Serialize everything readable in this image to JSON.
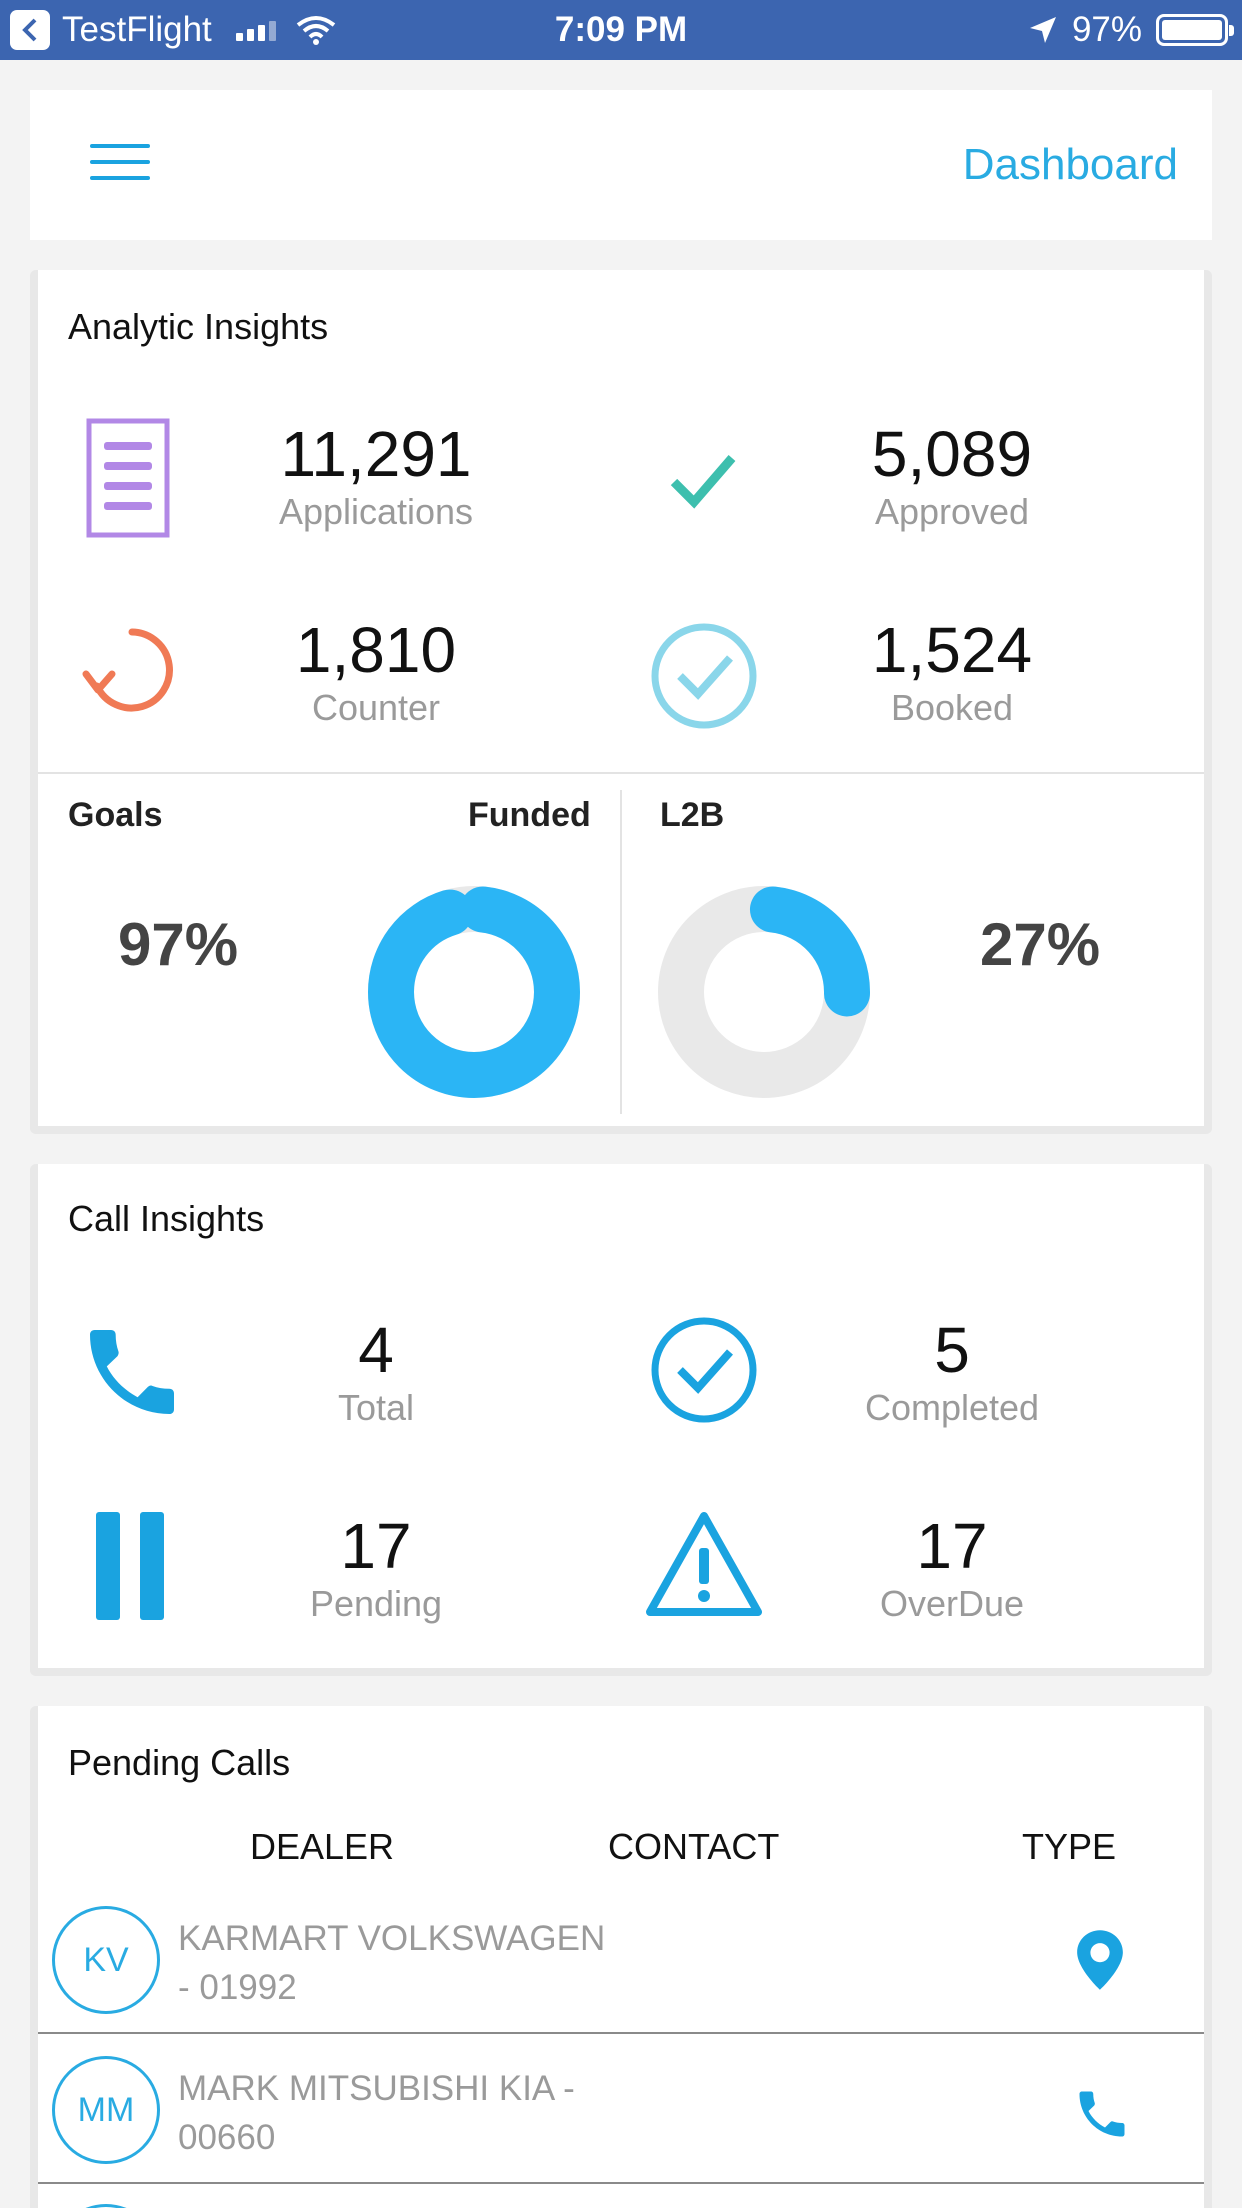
{
  "status_bar": {
    "back_app": "TestFlight",
    "time": "7:09 PM",
    "battery": "97%"
  },
  "header": {
    "title": "Dashboard"
  },
  "analytic": {
    "title": "Analytic Insights",
    "metrics": [
      {
        "value": "11,291",
        "label": "Applications",
        "icon": "document-icon",
        "color": "#b288e6"
      },
      {
        "value": "5,089",
        "label": "Approved",
        "icon": "check-icon",
        "color": "#3dbfae"
      },
      {
        "value": "1,810",
        "label": "Counter",
        "icon": "refresh-icon",
        "color": "#f07a55"
      },
      {
        "value": "1,524",
        "label": "Booked",
        "icon": "check-circle-icon",
        "color": "#8ad6ea"
      }
    ],
    "goals": {
      "goals_label": "Goals",
      "funded_label": "Funded",
      "funded_pct": "97%",
      "funded_value": 0.97,
      "l2b_label": "L2B",
      "l2b_pct": "27%",
      "l2b_value": 0.27
    }
  },
  "calls": {
    "title": "Call Insights",
    "metrics": [
      {
        "value": "4",
        "label": "Total",
        "icon": "phone-icon"
      },
      {
        "value": "5",
        "label": "Completed",
        "icon": "check-circle-icon"
      },
      {
        "value": "17",
        "label": "Pending",
        "icon": "pause-icon"
      },
      {
        "value": "17",
        "label": "OverDue",
        "icon": "warning-icon"
      }
    ]
  },
  "pending": {
    "title": "Pending Calls",
    "headers": {
      "dealer": "DEALER",
      "contact": "CONTACT",
      "type": "TYPE"
    },
    "rows": [
      {
        "initials": "KV",
        "dealer_line1": "KARMART VOLKSWAGEN",
        "dealer_line2": "- 01992",
        "type": "location-pin-icon"
      },
      {
        "initials": "MM",
        "dealer_line1": "MARK MITSUBISHI KIA -",
        "dealer_line2": "00660",
        "type": "phone-icon"
      }
    ]
  },
  "colors": {
    "accent": "#29abe2",
    "status_bar": "#3c65b0",
    "donut": "#2bb5f5",
    "donut_track": "#e9e9e9"
  }
}
